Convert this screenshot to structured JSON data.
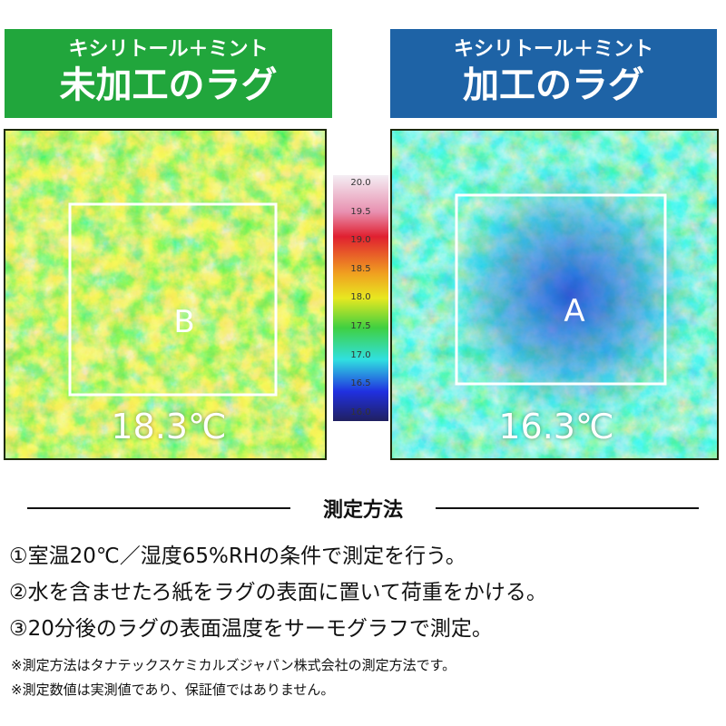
{
  "panels": [
    {
      "header": {
        "line1": "キシリトール＋ミント",
        "line2": "未加工のラグ"
      },
      "area_label": "B",
      "temperature": "18.3℃"
    },
    {
      "header": {
        "line1": "キシリトール＋ミント",
        "line2": "加工のラグ"
      },
      "area_label": "A",
      "temperature": "16.3℃"
    }
  ],
  "scale": {
    "labels": [
      "20.0",
      "19.5",
      "19.0",
      "18.5",
      "18.0",
      "17.5",
      "17.0",
      "16.5",
      "16.0"
    ]
  },
  "method": {
    "title": "測定方法",
    "steps": [
      "①室温20℃／湿度65%RHの条件で測定を行う。",
      "②水を含ませたろ紙をラグの表面に置いて荷重をかける。",
      "③20分後のラグの表面温度をサーモグラフで測定。"
    ],
    "notes": [
      "※測定方法はタナテックスケミカルズジャパン株式会社の測定方法です。",
      "※測定数値は実測値であり、保証値ではありません。"
    ]
  }
}
